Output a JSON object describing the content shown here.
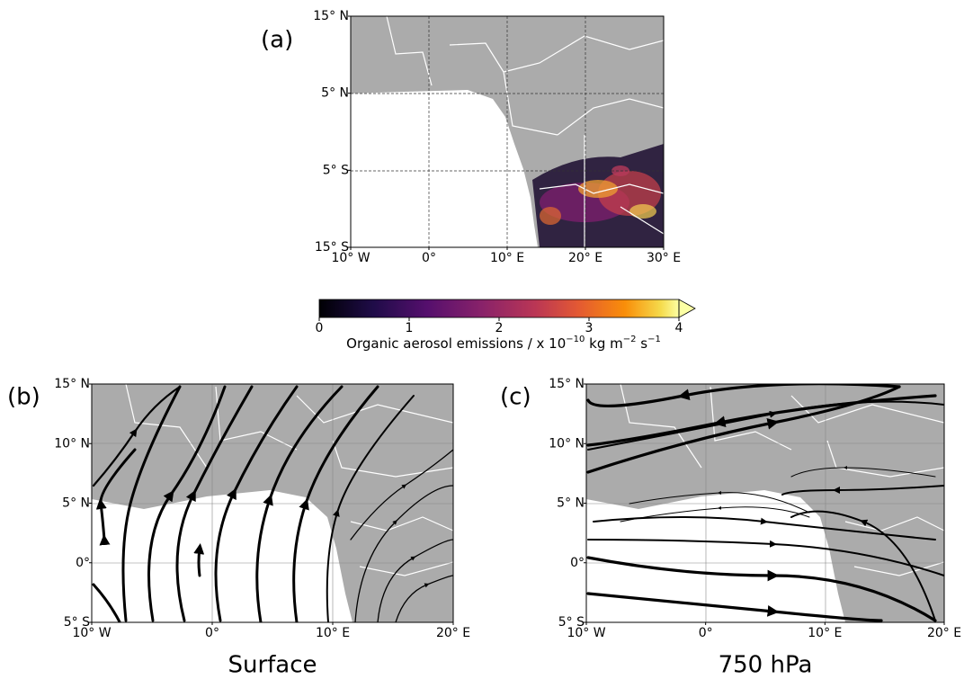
{
  "panels": [
    {
      "label": "(a)",
      "lonlim": [
        -10,
        30
      ],
      "latlim": [
        -15,
        15
      ],
      "lon_ticks": [
        {
          "value": -10,
          "label": "10° W"
        },
        {
          "value": 0,
          "label": "0°"
        },
        {
          "value": 10,
          "label": "10° E"
        },
        {
          "value": 20,
          "label": "20° E"
        },
        {
          "value": 30,
          "label": "30° E"
        }
      ],
      "lat_ticks": [
        {
          "value": 15,
          "label": "15° N"
        },
        {
          "value": 5,
          "label": "5° N"
        },
        {
          "value": -5,
          "label": "5° S"
        },
        {
          "value": -15,
          "label": "15° S"
        }
      ]
    },
    {
      "label": "(b)",
      "caption": "Surface",
      "lonlim": [
        -10,
        20
      ],
      "latlim": [
        -5,
        15
      ],
      "lon_ticks": [
        {
          "value": -10,
          "label": "10° W"
        },
        {
          "value": 0,
          "label": "0°"
        },
        {
          "value": 10,
          "label": "10° E"
        },
        {
          "value": 20,
          "label": "20° E"
        }
      ],
      "lat_ticks": [
        {
          "value": 15,
          "label": "15° N"
        },
        {
          "value": 10,
          "label": "10° N"
        },
        {
          "value": 5,
          "label": "5° N"
        },
        {
          "value": 0,
          "label": "0°"
        },
        {
          "value": -5,
          "label": "5° S"
        }
      ]
    },
    {
      "label": "(c)",
      "caption": "750 hPa",
      "lonlim": [
        -10,
        20
      ],
      "latlim": [
        -5,
        15
      ],
      "lon_ticks": [
        {
          "value": -10,
          "label": "10° W"
        },
        {
          "value": 0,
          "label": "0°"
        },
        {
          "value": 10,
          "label": "10° E"
        },
        {
          "value": 20,
          "label": "20° E"
        }
      ],
      "lat_ticks": [
        {
          "value": 15,
          "label": "15° N"
        },
        {
          "value": 10,
          "label": "10° N"
        },
        {
          "value": 5,
          "label": "5° N"
        },
        {
          "value": 0,
          "label": "0°"
        },
        {
          "value": -5,
          "label": "5° S"
        }
      ]
    }
  ],
  "colorbar": {
    "lim": [
      0,
      4
    ],
    "ticks": [
      0,
      1,
      2,
      3,
      4
    ],
    "label_parts": [
      "Organic aerosol emissions / x 10",
      "−10",
      " kg m",
      "−2",
      " s",
      "−1"
    ]
  }
}
